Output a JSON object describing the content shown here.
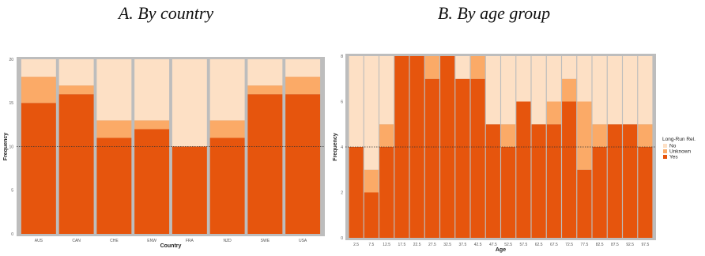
{
  "panels": {
    "a_title": "A. By country",
    "b_title": "B. By age group"
  },
  "colors": {
    "No": "#fde0c5",
    "Unknown": "#fbaa67",
    "Yes": "#e6550d",
    "panel_bg": "#bdbdbd"
  },
  "legend": {
    "title": "Long-Run Rel.",
    "items": [
      "No",
      "Unknown",
      "Yes"
    ]
  },
  "chart_data": [
    {
      "type": "bar",
      "stacked": true,
      "title": "A. By country",
      "xlabel": "Country",
      "ylabel": "Frequency",
      "categories": [
        "AUS",
        "CAN",
        "CHE",
        "ENW",
        "FRA",
        "NZD",
        "SWE",
        "USA"
      ],
      "series": [
        {
          "name": "Yes",
          "values": [
            15,
            16,
            11,
            12,
            10,
            11,
            16,
            16
          ]
        },
        {
          "name": "Unknown",
          "values": [
            3,
            1,
            2,
            1,
            0,
            2,
            1,
            2
          ]
        },
        {
          "name": "No",
          "values": [
            2,
            3,
            7,
            7,
            10,
            7,
            3,
            2
          ]
        }
      ],
      "ylim": [
        0,
        20
      ],
      "yticks": [
        0,
        5,
        10,
        15,
        20
      ],
      "reference_line": 10,
      "grid": false
    },
    {
      "type": "bar",
      "stacked": true,
      "title": "B. By age group",
      "xlabel": "Age",
      "ylabel": "Frequency",
      "categories": [
        "2.5",
        "7.5",
        "12.5",
        "17.5",
        "22.5",
        "27.5",
        "32.5",
        "37.5",
        "42.5",
        "47.5",
        "52.5",
        "57.5",
        "62.5",
        "67.5",
        "72.5",
        "77.5",
        "82.5",
        "87.5",
        "92.5",
        "97.5"
      ],
      "series": [
        {
          "name": "Yes",
          "values": [
            4,
            2,
            4,
            8,
            8,
            7,
            8,
            7,
            7,
            5,
            4,
            6,
            5,
            5,
            6,
            3,
            4,
            5,
            5,
            4
          ]
        },
        {
          "name": "Unknown",
          "values": [
            0,
            1,
            1,
            0,
            0,
            1,
            0,
            0,
            1,
            0,
            1,
            0,
            0,
            1,
            1,
            3,
            1,
            0,
            0,
            1
          ]
        },
        {
          "name": "No",
          "values": [
            4,
            5,
            3,
            0,
            0,
            0,
            0,
            1,
            0,
            3,
            3,
            2,
            3,
            2,
            1,
            2,
            3,
            3,
            3,
            3
          ]
        }
      ],
      "ylim": [
        0,
        8
      ],
      "yticks": [
        0,
        2,
        4,
        6,
        8
      ],
      "reference_line": 4,
      "legend_position": "right",
      "grid": false
    }
  ]
}
